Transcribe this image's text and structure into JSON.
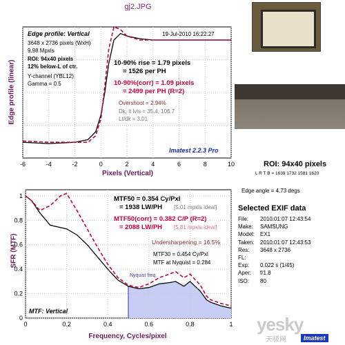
{
  "header": {
    "filename": "gj2.JPG"
  },
  "edge_panel": {
    "title": "Edge profile: Vertical",
    "date": "19-Jul-2010 16:22:27",
    "image_size": "3648 x 2736 pixels (WxH)",
    "mpxls": "9.98 Mpxls",
    "roi": "ROI: 94x40 pixels",
    "below": "12% below-L of ctr.",
    "channel": "Y-channel (YBL12)",
    "gamma": "Gamma = 0.5",
    "rise": "10-90% rise = 1.79 pixels",
    "per_ph": "= 1526 per PH",
    "corr": "10-90%(corr) = 1.09 pixels",
    "corr_ph": "= 2499 per PH  (R=2)",
    "overshoot": "Overshoot = 2.94%",
    "dk": "Dk, lt lvls = 35.4, 106.7",
    "ltdk": "Lt/dk = 3.01",
    "version": "Imatest 2.2.3 Pro",
    "ylabel": "Edge profile (linear)",
    "xlabel": "Pixels (Vertical)"
  },
  "mtf_panel": {
    "title": "MTF: Vertical",
    "mtf50": "MTF50 = 0.354 Cy/Pxl",
    "mtf50_lw": "= 1938 LW/PH",
    "mtf50_ideal": "[5.01 mpxls ideal]",
    "mtf50c": "MTF50(corr) = 0.382 C/P  (R=2)",
    "mtf50c_lw": "= 2088 LW/PH",
    "mtf50c_ideal": "[5.81 mpxls ideal]",
    "under": "Undersharpening = 16.5%",
    "mtf30": "MTF30 = 0.454 Cy/Pxl",
    "nyq": "MTF at Nyquist = 0.284",
    "nyq_label": "Nyquist freq",
    "ylabel": "SFR (MTF)",
    "xlabel": "Frequency, Cycles/pixel"
  },
  "roi_info": {
    "title": "ROI: 94x40 pixels",
    "lrtb": "L R T B = 1639 1732  1581 1620",
    "edge_angle": "Edge angle = 4.73 degs"
  },
  "exif": {
    "title": "Selected EXIF data",
    "rows": [
      {
        "label": "File:",
        "value": "2010:01:07 12:43:54"
      },
      {
        "label": "Make:",
        "value": "SAMSUNG"
      },
      {
        "label": "Model:",
        "value": "EX1"
      },
      {
        "label": "Taken:",
        "value": "2010:01:07 12:43:53"
      },
      {
        "label": "Res:",
        "value": "3648 x 2736"
      },
      {
        "label": "FL:",
        "value": ""
      },
      {
        "label": "Exp:",
        "value": "0.022 s  (1/45)"
      },
      {
        "label": "Aper:",
        "value": "f/1.8"
      },
      {
        "label": "ISO:",
        "value": "80"
      }
    ]
  },
  "branding": {
    "logo": "Imatest",
    "watermark": "yesky",
    "watermark_sub": "天极网"
  },
  "colors": {
    "black": "#000000",
    "red": "#c8003c",
    "nyquist_fill": "#c8cdf5",
    "axis_title": "#6a1a5a"
  },
  "chart_data": [
    {
      "type": "line",
      "title": "Edge profile: Vertical",
      "xlabel": "Pixels (Vertical)",
      "ylabel": "Edge profile (linear)",
      "xlim": [
        -6,
        10
      ],
      "x_ticks": [
        -6,
        -4,
        -2,
        0,
        2,
        4,
        6,
        8,
        10
      ],
      "grid": true,
      "series": [
        {
          "color": "#000000",
          "dash": false,
          "points": [
            [
              -6,
              0.12
            ],
            [
              -4,
              0.11
            ],
            [
              -2,
              0.12
            ],
            [
              -1,
              0.14
            ],
            [
              -0.4,
              0.2
            ],
            [
              0,
              0.33
            ],
            [
              0.3,
              0.5
            ],
            [
              0.6,
              0.72
            ],
            [
              1,
              0.9
            ],
            [
              1.5,
              0.95
            ],
            [
              2,
              0.93
            ],
            [
              3,
              0.91
            ],
            [
              4,
              0.9
            ],
            [
              6,
              0.9
            ],
            [
              8,
              0.9
            ],
            [
              10,
              0.9
            ]
          ]
        },
        {
          "color": "#c8003c",
          "dash": true,
          "points": [
            [
              -6,
              0.13
            ],
            [
              -4,
              0.12
            ],
            [
              -2,
              0.12
            ],
            [
              -1,
              0.12
            ],
            [
              -0.4,
              0.17
            ],
            [
              0,
              0.3
            ],
            [
              0.3,
              0.55
            ],
            [
              0.6,
              0.83
            ],
            [
              1,
              1.0
            ],
            [
              1.5,
              0.98
            ],
            [
              2,
              0.93
            ],
            [
              3,
              0.9
            ],
            [
              4,
              0.9
            ],
            [
              6,
              0.9
            ],
            [
              8,
              0.9
            ],
            [
              10,
              0.9
            ]
          ]
        }
      ]
    },
    {
      "type": "line",
      "title": "MTF: Vertical",
      "xlabel": "Frequency, Cycles/pixel",
      "ylabel": "SFR (MTF)",
      "xlim": [
        0,
        1
      ],
      "ylim": [
        0,
        1.05
      ],
      "x_ticks": [
        0,
        0.2,
        0.4,
        0.6,
        0.8,
        1
      ],
      "y_ticks": [
        0,
        0.2,
        0.4,
        0.6,
        0.8,
        1
      ],
      "grid": true,
      "nyquist": 0.5,
      "series": [
        {
          "color": "#000000",
          "dash": false,
          "points": [
            [
              0,
              1.0
            ],
            [
              0.03,
              0.96
            ],
            [
              0.07,
              0.86
            ],
            [
              0.12,
              0.76
            ],
            [
              0.2,
              0.73
            ],
            [
              0.25,
              0.68
            ],
            [
              0.3,
              0.6
            ],
            [
              0.35,
              0.5
            ],
            [
              0.4,
              0.4
            ],
            [
              0.45,
              0.31
            ],
            [
              0.5,
              0.26
            ],
            [
              0.55,
              0.24
            ],
            [
              0.6,
              0.25
            ],
            [
              0.65,
              0.28
            ],
            [
              0.7,
              0.29
            ],
            [
              0.73,
              0.3
            ],
            [
              0.77,
              0.26
            ],
            [
              0.8,
              0.3
            ],
            [
              0.85,
              0.22
            ],
            [
              0.88,
              0.15
            ],
            [
              0.9,
              0.13
            ],
            [
              0.95,
              0.1
            ],
            [
              1,
              0.08
            ]
          ]
        },
        {
          "color": "#c8003c",
          "dash": true,
          "points": [
            [
              0,
              1.0
            ],
            [
              0.03,
              0.96
            ],
            [
              0.07,
              0.88
            ],
            [
              0.12,
              0.92
            ],
            [
              0.17,
              1.0
            ],
            [
              0.2,
              1.02
            ],
            [
              0.25,
              0.88
            ],
            [
              0.3,
              0.73
            ],
            [
              0.35,
              0.58
            ],
            [
              0.4,
              0.44
            ],
            [
              0.45,
              0.33
            ],
            [
              0.5,
              0.27
            ],
            [
              0.55,
              0.25
            ],
            [
              0.6,
              0.28
            ],
            [
              0.65,
              0.33
            ],
            [
              0.7,
              0.36
            ],
            [
              0.73,
              0.38
            ],
            [
              0.77,
              0.33
            ],
            [
              0.8,
              0.36
            ],
            [
              0.85,
              0.27
            ],
            [
              0.88,
              0.18
            ],
            [
              0.9,
              0.15
            ],
            [
              0.95,
              0.12
            ],
            [
              1,
              0.1
            ]
          ]
        }
      ]
    }
  ]
}
